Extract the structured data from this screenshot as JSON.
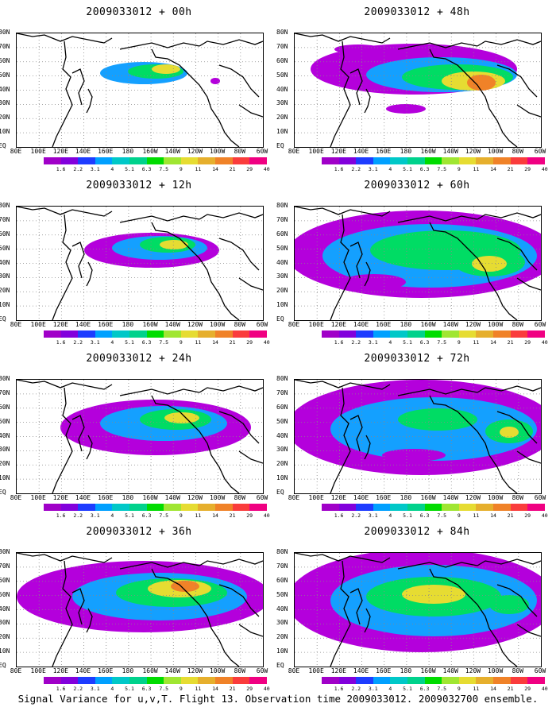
{
  "panels": [
    {
      "title": "2009033012 + 00h"
    },
    {
      "title": "2009033012 + 48h"
    },
    {
      "title": "2009033012 + 12h"
    },
    {
      "title": "2009033012 + 60h"
    },
    {
      "title": "2009033012 + 24h"
    },
    {
      "title": "2009033012 + 72h"
    },
    {
      "title": "2009033012 + 36h"
    },
    {
      "title": "2009033012 + 84h"
    }
  ],
  "lat_labels": [
    "80N",
    "70N",
    "60N",
    "50N",
    "40N",
    "30N",
    "20N",
    "10N",
    "EQ"
  ],
  "lon_labels": [
    "80E",
    "100E",
    "120E",
    "140E",
    "160E",
    "180",
    "160W",
    "140W",
    "120W",
    "100W",
    "80W",
    "60W"
  ],
  "colorbar": {
    "levels": [
      "1.6",
      "2.2",
      "3.1",
      "4",
      "5.1",
      "6.3",
      "7.5",
      "9",
      "11",
      "14",
      "21",
      "29",
      "40"
    ],
    "colors": [
      "#a000c8",
      "#8200dc",
      "#1e3cff",
      "#00a0ff",
      "#00c8c8",
      "#00d28c",
      "#00dc00",
      "#a0e632",
      "#e6dc32",
      "#e6af2d",
      "#f08228",
      "#fa3c3c",
      "#f00082"
    ]
  },
  "caption": "Signal Variance for u,v,T. Flight 13. Observation time 2009033012. 2009032700 ensemble."
}
